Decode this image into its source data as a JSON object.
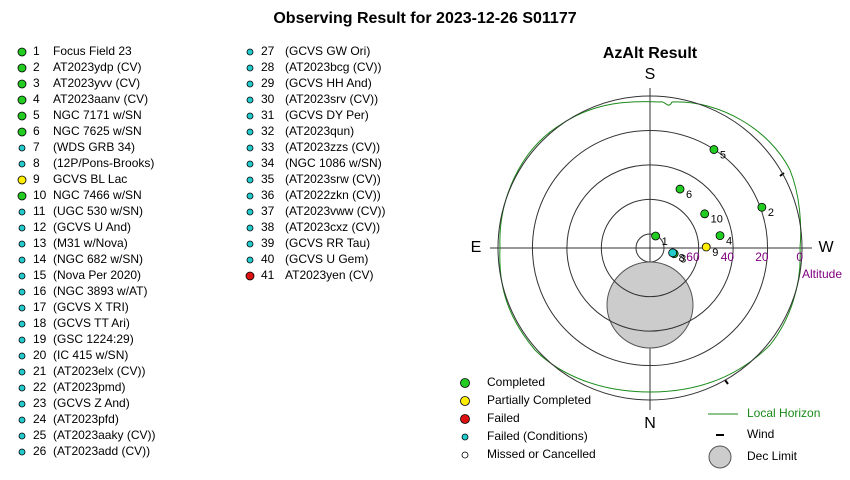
{
  "title": "Observing Result for 2023-12-26 S01177",
  "targets": [
    {
      "num": 1,
      "name": "Focus Field 23",
      "status": "completed"
    },
    {
      "num": 2,
      "name": "AT2023ydp (CV)",
      "status": "completed"
    },
    {
      "num": 3,
      "name": "AT2023yvv (CV)",
      "status": "completed"
    },
    {
      "num": 4,
      "name": "AT2023aanv (CV)",
      "status": "completed"
    },
    {
      "num": 5,
      "name": "NGC 7171 w/SN",
      "status": "completed"
    },
    {
      "num": 6,
      "name": "NGC 7625 w/SN",
      "status": "completed"
    },
    {
      "num": 7,
      "name": "(WDS GRB 34)",
      "status": "conditions"
    },
    {
      "num": 8,
      "name": "(12P/Pons-Brooks)",
      "status": "conditions"
    },
    {
      "num": 9,
      "name": "GCVS BL Lac",
      "status": "partial"
    },
    {
      "num": 10,
      "name": "NGC 7466 w/SN",
      "status": "completed"
    },
    {
      "num": 11,
      "name": "(UGC 530 w/SN)",
      "status": "conditions"
    },
    {
      "num": 12,
      "name": "(GCVS U And)",
      "status": "conditions"
    },
    {
      "num": 13,
      "name": "(M31 w/Nova)",
      "status": "conditions"
    },
    {
      "num": 14,
      "name": "(NGC 682 w/SN)",
      "status": "conditions"
    },
    {
      "num": 15,
      "name": "(Nova Per 2020)",
      "status": "conditions"
    },
    {
      "num": 16,
      "name": "(NGC 3893 w/AT)",
      "status": "conditions"
    },
    {
      "num": 17,
      "name": "(GCVS X TRI)",
      "status": "conditions"
    },
    {
      "num": 18,
      "name": "(GCVS TT Ari)",
      "status": "conditions"
    },
    {
      "num": 19,
      "name": "(GSC 1224:29)",
      "status": "conditions"
    },
    {
      "num": 20,
      "name": "(IC 415 w/SN)",
      "status": "conditions"
    },
    {
      "num": 21,
      "name": "(AT2023elx (CV))",
      "status": "conditions"
    },
    {
      "num": 22,
      "name": "(AT2023pmd)",
      "status": "conditions"
    },
    {
      "num": 23,
      "name": "(GCVS Z And)",
      "status": "conditions"
    },
    {
      "num": 24,
      "name": "(AT2023pfd)",
      "status": "conditions"
    },
    {
      "num": 25,
      "name": "(AT2023aaky (CV))",
      "status": "conditions"
    },
    {
      "num": 26,
      "name": "(AT2023add (CV))",
      "status": "conditions"
    },
    {
      "num": 27,
      "name": "(GCVS GW Ori)",
      "status": "conditions"
    },
    {
      "num": 28,
      "name": "(AT2023bcg (CV))",
      "status": "conditions"
    },
    {
      "num": 29,
      "name": "(GCVS HH And)",
      "status": "conditions"
    },
    {
      "num": 30,
      "name": "(AT2023srv (CV))",
      "status": "conditions"
    },
    {
      "num": 31,
      "name": "(GCVS DY Per)",
      "status": "conditions"
    },
    {
      "num": 32,
      "name": "(AT2023qun)",
      "status": "conditions"
    },
    {
      "num": 33,
      "name": "(AT2023zzs (CV))",
      "status": "conditions"
    },
    {
      "num": 34,
      "name": "(NGC 1086 w/SN)",
      "status": "conditions"
    },
    {
      "num": 35,
      "name": "(AT2023srw (CV))",
      "status": "conditions"
    },
    {
      "num": 36,
      "name": "(AT2022zkn (CV))",
      "status": "conditions"
    },
    {
      "num": 37,
      "name": "(AT2023vww (CV))",
      "status": "conditions"
    },
    {
      "num": 38,
      "name": "(AT2023cxz (CV))",
      "status": "conditions"
    },
    {
      "num": 39,
      "name": "(GCVS RR Tau)",
      "status": "conditions"
    },
    {
      "num": 40,
      "name": "(GCVS U Gem)",
      "status": "conditions"
    },
    {
      "num": 41,
      "name": "AT2023yen (CV)",
      "status": "failed"
    }
  ],
  "chart_data": {
    "type": "polar",
    "title": "AzAlt Result",
    "compass": {
      "s": "S",
      "w": "W",
      "n": "N",
      "e": "E"
    },
    "rlim": [
      90,
      0
    ],
    "rticks": [
      0,
      20,
      40,
      60
    ],
    "r_label": "Altitude",
    "points": [
      {
        "label": "1",
        "az": 205,
        "alt": 82,
        "status": "completed"
      },
      {
        "label": "2",
        "az": 250,
        "alt": 18,
        "status": "completed"
      },
      {
        "label": "3",
        "az": 283,
        "alt": 75,
        "status": "completed"
      },
      {
        "label": "4",
        "az": 260,
        "alt": 47,
        "status": "completed"
      },
      {
        "label": "5",
        "az": 213,
        "alt": 19,
        "status": "completed"
      },
      {
        "label": "6",
        "az": 207,
        "alt": 50,
        "status": "completed"
      },
      {
        "label": "8",
        "az": 282,
        "alt": 76,
        "status": "conditions"
      },
      {
        "label": "9",
        "az": 269,
        "alt": 56,
        "status": "partial"
      },
      {
        "label": "10",
        "az": 238,
        "alt": 51,
        "status": "completed"
      }
    ],
    "colors": {
      "completed": "#22cc22",
      "partial": "#ffee00",
      "failed": "#dd1111",
      "conditions": "#22cccc",
      "missed": "#ffffff"
    },
    "legend": [
      {
        "label": "Completed",
        "status": "completed"
      },
      {
        "label": "Partially Completed",
        "status": "partial"
      },
      {
        "label": "Failed",
        "status": "failed"
      },
      {
        "label": "Failed (Conditions)",
        "status": "conditions"
      },
      {
        "label": "Missed or Cancelled",
        "status": "missed"
      }
    ],
    "legend2": {
      "horizon": "Local Horizon",
      "wind": "Wind",
      "dec": "Dec Limit"
    }
  }
}
